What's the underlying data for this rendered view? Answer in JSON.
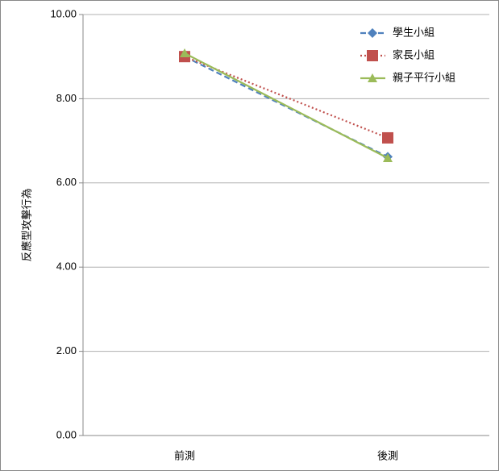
{
  "chart_data": {
    "type": "line",
    "y_label": "反應型攻擊行為",
    "categories": [
      "前測",
      "後測"
    ],
    "series": [
      {
        "name": "學生小組",
        "color": "#4f81bd",
        "dash": "dashed",
        "marker": "diamond",
        "values": [
          9.0,
          6.62
        ]
      },
      {
        "name": "家長小組",
        "color": "#c0504d",
        "dash": "dotted",
        "marker": "square",
        "values": [
          9.0,
          7.07
        ]
      },
      {
        "name": "親子平行小組",
        "color": "#9bbb59",
        "dash": "solid",
        "marker": "triangle",
        "values": [
          9.08,
          6.59
        ]
      }
    ],
    "ylim": [
      0,
      10
    ],
    "yticks": [
      {
        "value": 0,
        "label": "0.00"
      },
      {
        "value": 2,
        "label": "2.00"
      },
      {
        "value": 4,
        "label": "4.00"
      },
      {
        "value": 6,
        "label": "6.00"
      },
      {
        "value": 8,
        "label": "8.00"
      },
      {
        "value": 10,
        "label": "10.00"
      }
    ],
    "grid": true,
    "legend": "upper-right"
  }
}
